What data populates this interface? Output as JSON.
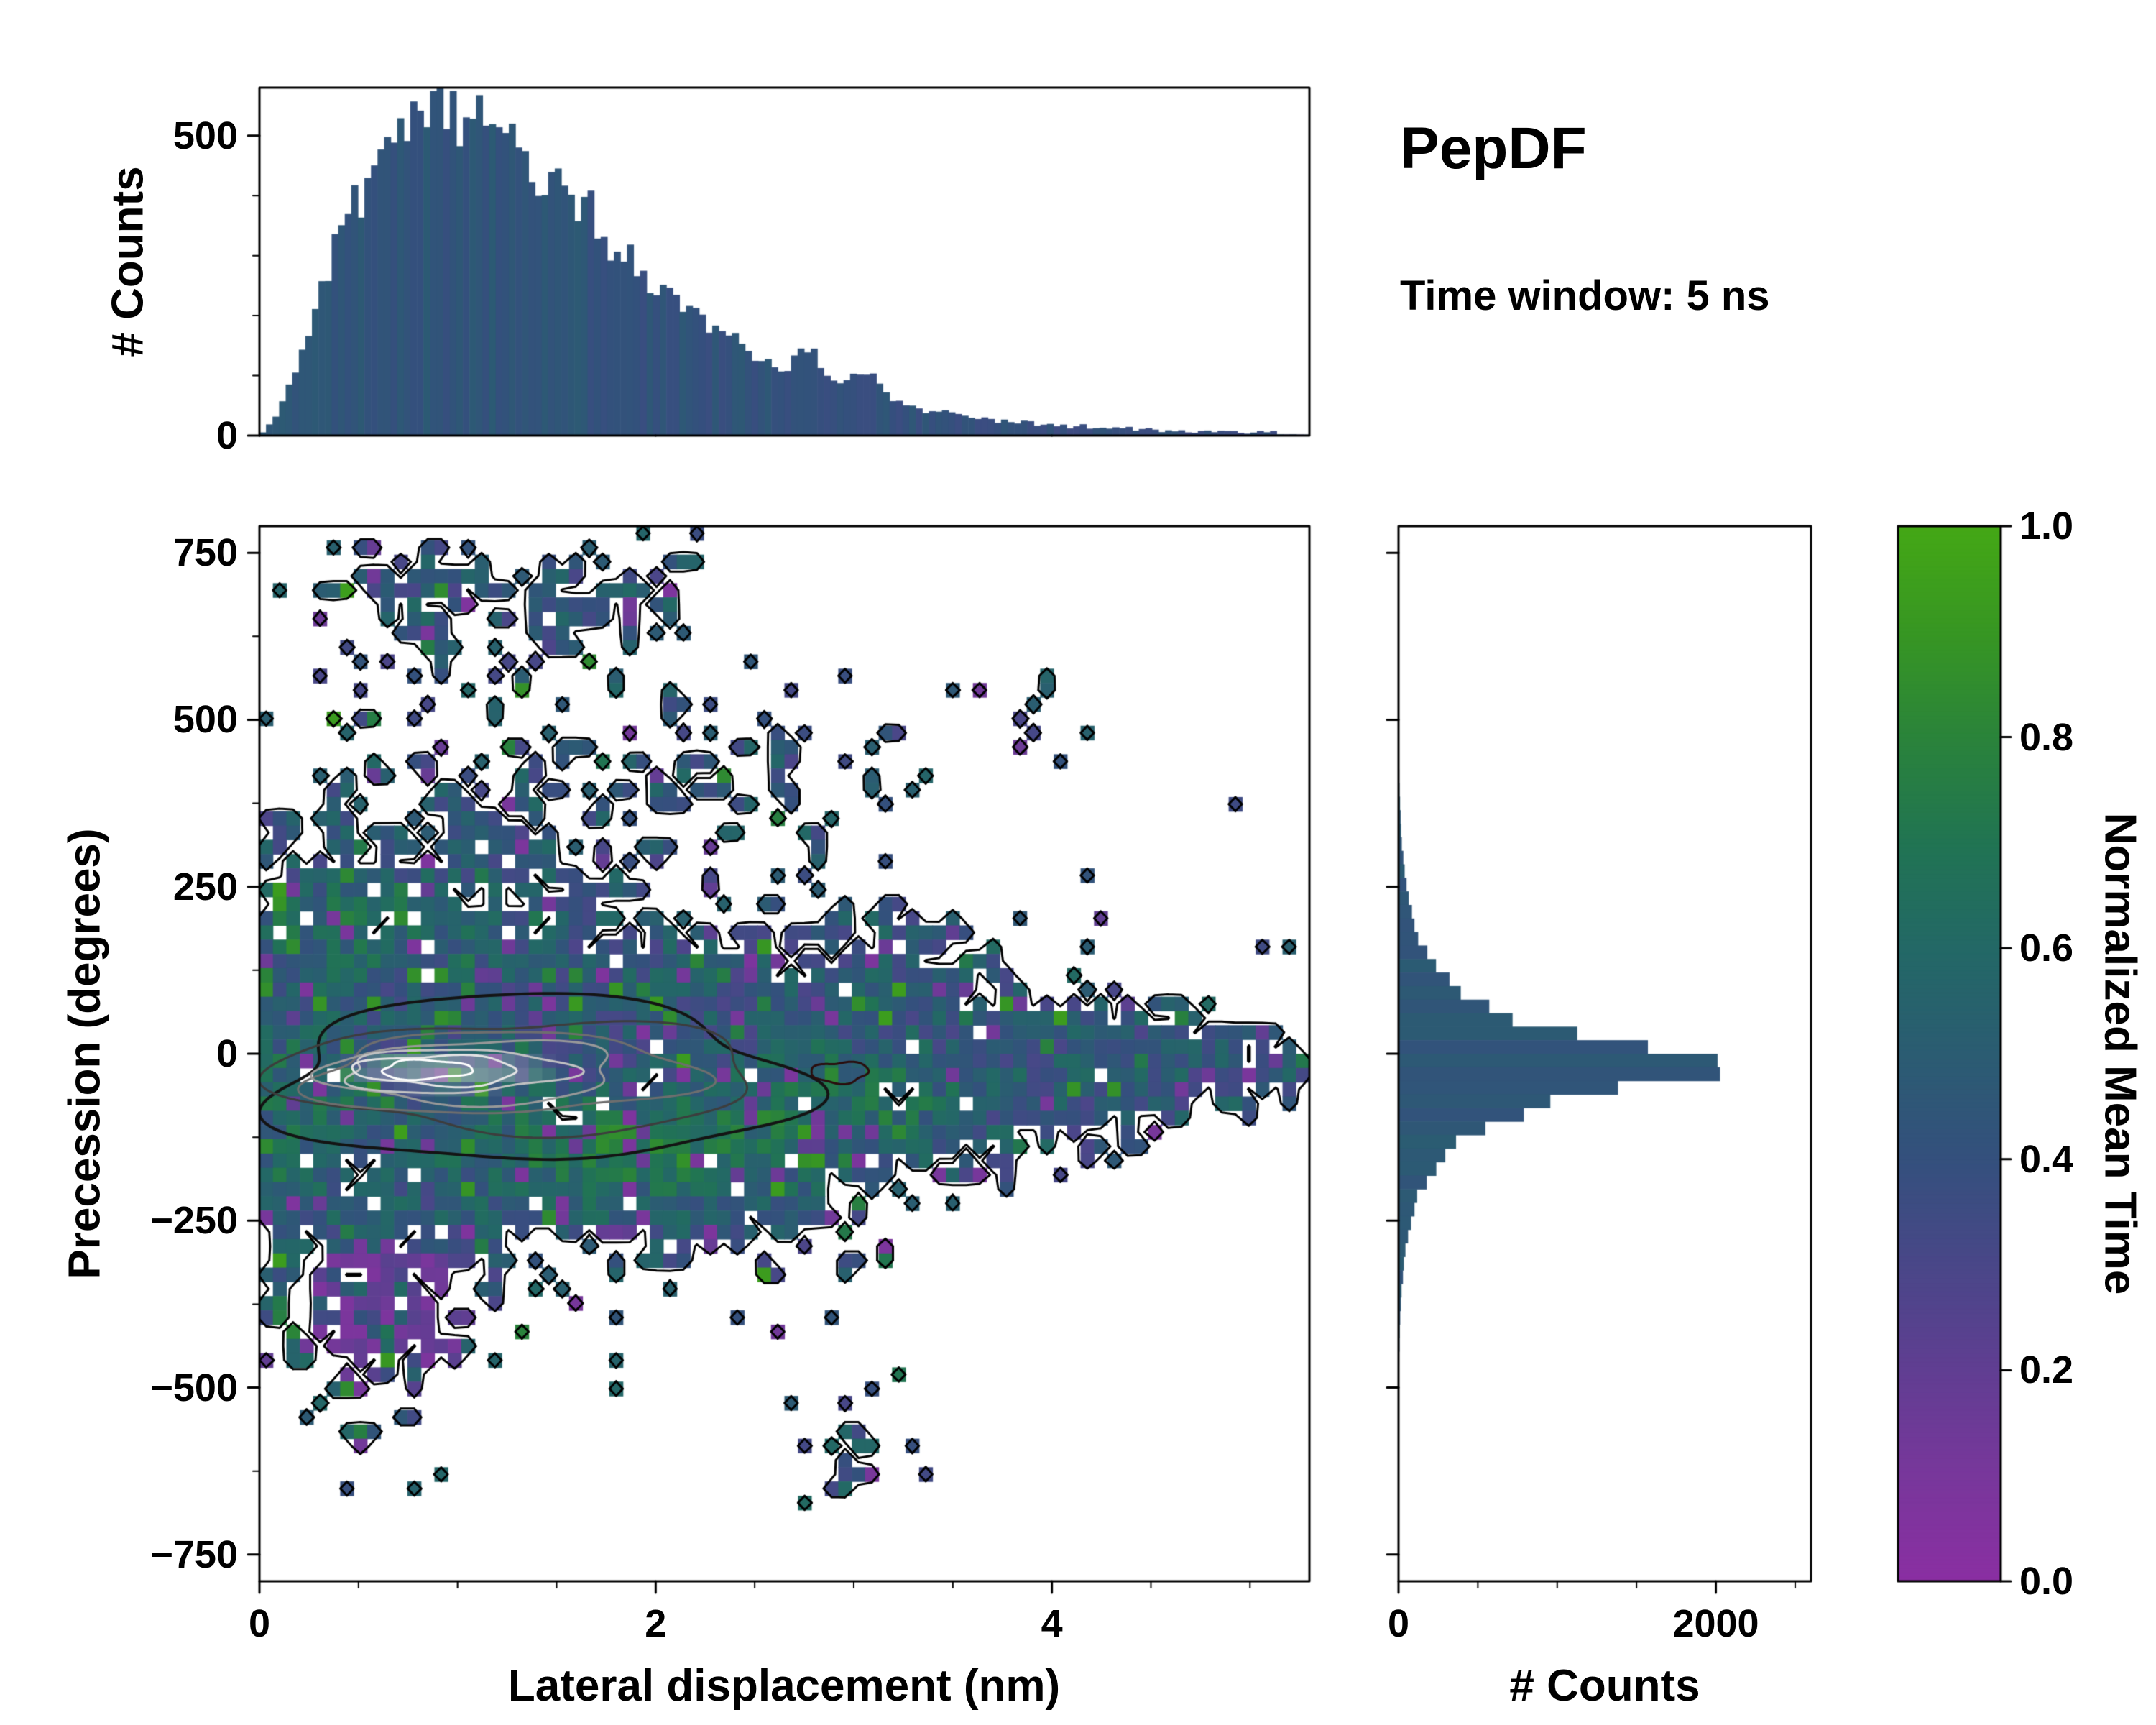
{
  "title": "PepDF",
  "subtitle": "Time window: 5 ns",
  "background": "#ffffff",
  "axis_color": "#000000",
  "colormap_stops": [
    [
      0.0,
      "#8a2fa2"
    ],
    [
      0.1,
      "#78379b"
    ],
    [
      0.2,
      "#603e92"
    ],
    [
      0.3,
      "#494788"
    ],
    [
      0.4,
      "#34507d"
    ],
    [
      0.5,
      "#2b5c72"
    ],
    [
      0.6,
      "#236866"
    ],
    [
      0.7,
      "#217453"
    ],
    [
      0.8,
      "#2a833b"
    ],
    [
      0.9,
      "#379623"
    ],
    [
      1.0,
      "#44a716"
    ]
  ],
  "chart_data": [
    {
      "id": "top_marginal",
      "type": "bar",
      "ylabel": "# Counts",
      "x_range": [
        0,
        5.3
      ],
      "y_range": [
        0,
        580
      ],
      "nbins": 160,
      "seed": 11,
      "y_ticks": [
        {
          "v": 0,
          "label": "0"
        },
        {
          "v": 500,
          "label": "500"
        }
      ],
      "y_minor": [
        100,
        200,
        300,
        400
      ],
      "model": {
        "peak_height": 530,
        "peak_x": 0.92,
        "shape": 1.9,
        "noise": 0.11,
        "tail_floor": 7,
        "bumps": [
          {
            "x": 1.62,
            "h": 25,
            "w": 0.1
          },
          {
            "x": 2.78,
            "h": 42,
            "w": 0.08
          },
          {
            "x": 3.06,
            "h": 34,
            "w": 0.1
          }
        ]
      },
      "bar_value_base": 0.45,
      "bar_value_jitter": 0.05
    },
    {
      "id": "joint_density",
      "type": "heatmap",
      "xlabel": "Lateral displacement (nm)",
      "ylabel": "Precession (degrees)",
      "x_range": [
        0,
        5.3
      ],
      "y_range": [
        -790,
        790
      ],
      "nx": 78,
      "ny": 74,
      "seed": 7,
      "x_ticks": [
        {
          "v": 0,
          "label": "0"
        },
        {
          "v": 2,
          "label": "2"
        },
        {
          "v": 4,
          "label": "4"
        }
      ],
      "x_minor_step": 0.5,
      "y_ticks": [
        {
          "v": 750,
          "label": "750"
        },
        {
          "v": 500,
          "label": "500"
        },
        {
          "v": 250,
          "label": "250"
        },
        {
          "v": 0,
          "label": "0"
        },
        {
          "v": -250,
          "label": "−250"
        },
        {
          "v": -500,
          "label": "−500"
        },
        {
          "v": -750,
          "label": "−750"
        }
      ],
      "y_minor_step": 125,
      "core": {
        "y_center": -20,
        "sigma0": 182,
        "sigma_slope": 27,
        "sigma_min": 48,
        "amp": 1.75,
        "amp_fade_start": 3.4,
        "amp_fade_rate": 0.5
      },
      "lobes": [
        {
          "cx": 1.45,
          "cy": -205,
          "rx": 1.2,
          "ry": 80,
          "amp": 0.55
        },
        {
          "cx": 1.05,
          "cy": 330,
          "rx": 1.0,
          "ry": 115,
          "amp": 0.5
        },
        {
          "cx": 2.45,
          "cy": 430,
          "rx": 0.55,
          "ry": 75,
          "amp": 0.5
        },
        {
          "cx": 0.85,
          "cy": 690,
          "rx": 0.42,
          "ry": 90,
          "amp": 0.8
        },
        {
          "cx": 1.8,
          "cy": 700,
          "rx": 0.4,
          "ry": 85,
          "amp": 0.7
        },
        {
          "cx": 1.45,
          "cy": 640,
          "rx": 0.25,
          "ry": 60,
          "amp": 0.4
        },
        {
          "cx": 0.65,
          "cy": -400,
          "rx": 0.38,
          "ry": 110,
          "amp": 0.9,
          "purple": true
        },
        {
          "cx": 3.0,
          "cy": -570,
          "rx": 0.25,
          "ry": 80,
          "amp": 0.35
        },
        {
          "cx": 2.35,
          "cy": -235,
          "rx": 0.5,
          "ry": 65,
          "amp": 0.5
        },
        {
          "cx": 3.35,
          "cy": 155,
          "rx": 0.6,
          "ry": 65,
          "amp": 0.4
        },
        {
          "cx": 3.95,
          "cy": 485,
          "rx": 0.15,
          "ry": 45,
          "amp": 0.5
        },
        {
          "cx": 2.1,
          "cy": 525,
          "rx": 0.12,
          "ry": 40,
          "amp": 0.5
        }
      ],
      "sparse_rate": 0.012,
      "sparse_rate_far": 0.002,
      "hole_rate": 0.035,
      "value_base": 0.45,
      "value_noise": 0.17,
      "green_rate": 0.07,
      "purple_rate": 0.07,
      "green_patches": [
        {
          "cx": 1.9,
          "cy": -140,
          "rx": 0.85,
          "ry": 70,
          "amp": 0.3
        },
        {
          "cx": 0.55,
          "cy": 190,
          "rx": 0.5,
          "ry": 60,
          "amp": 0.22
        },
        {
          "cx": 2.95,
          "cy": -60,
          "rx": 0.55,
          "ry": 65,
          "amp": 0.2
        },
        {
          "cx": 0.25,
          "cy": -60,
          "rx": 0.3,
          "ry": 120,
          "amp": 0.18
        }
      ],
      "core_highlight": {
        "cx": 0.95,
        "cy": -25,
        "rx": 0.6,
        "ry": 34,
        "blend": 0.5
      },
      "contours": [
        {
          "cx": 1.38,
          "cy": -40,
          "rx": 1.38,
          "ry": 118,
          "color": "#141414",
          "lw": 4
        },
        {
          "cx": 1.33,
          "cy": -34,
          "rx": 1.16,
          "ry": 86,
          "color": "#3d3d3d",
          "lw": 3
        },
        {
          "cx": 1.22,
          "cy": -30,
          "rx": 0.95,
          "ry": 62,
          "color": "#6e6e6e",
          "lw": 3
        },
        {
          "cx": 1.08,
          "cy": -28,
          "rx": 0.75,
          "ry": 46,
          "color": "#999999",
          "lw": 3
        },
        {
          "cx": 0.98,
          "cy": -26,
          "rx": 0.56,
          "ry": 33,
          "color": "#c2c2c2",
          "lw": 3
        },
        {
          "cx": 0.9,
          "cy": -25,
          "rx": 0.4,
          "ry": 23,
          "color": "#e4e4e4",
          "lw": 3
        },
        {
          "cx": 0.84,
          "cy": -24,
          "rx": 0.23,
          "ry": 14,
          "color": "#ffffff",
          "lw": 3
        },
        {
          "cx": 2.93,
          "cy": -28,
          "rx": 0.14,
          "ry": 16,
          "color": "#2a0d0d",
          "lw": 3
        }
      ],
      "outline": {
        "color": "#000000",
        "lw": 3,
        "level": 0.35
      }
    },
    {
      "id": "right_marginal",
      "type": "bar",
      "xlabel": "# Counts",
      "x_range": [
        0,
        2600
      ],
      "y_range": [
        -790,
        790
      ],
      "nbins": 78,
      "seed": 23,
      "x_ticks": [
        {
          "v": 0,
          "label": "0"
        },
        {
          "v": 2000,
          "label": "2000"
        }
      ],
      "x_minor": [
        500,
        1000,
        1500,
        2500
      ],
      "model": {
        "peak": 2330,
        "y0": -18,
        "w": 55,
        "wing_amp": 120,
        "wing_sigma": 235,
        "noise": 0.09
      },
      "bar_value_base": 0.46,
      "bar_value_jitter": 0.04
    },
    {
      "id": "colorbar",
      "type": "colorbar",
      "label": "Normalized Mean Time",
      "range": [
        0,
        1
      ],
      "ticks": [
        {
          "v": 1.0,
          "label": "1.0"
        },
        {
          "v": 0.8,
          "label": "0.8"
        },
        {
          "v": 0.6,
          "label": "0.6"
        },
        {
          "v": 0.4,
          "label": "0.4"
        },
        {
          "v": 0.2,
          "label": "0.2"
        },
        {
          "v": 0.0,
          "label": "0.0"
        }
      ]
    }
  ]
}
